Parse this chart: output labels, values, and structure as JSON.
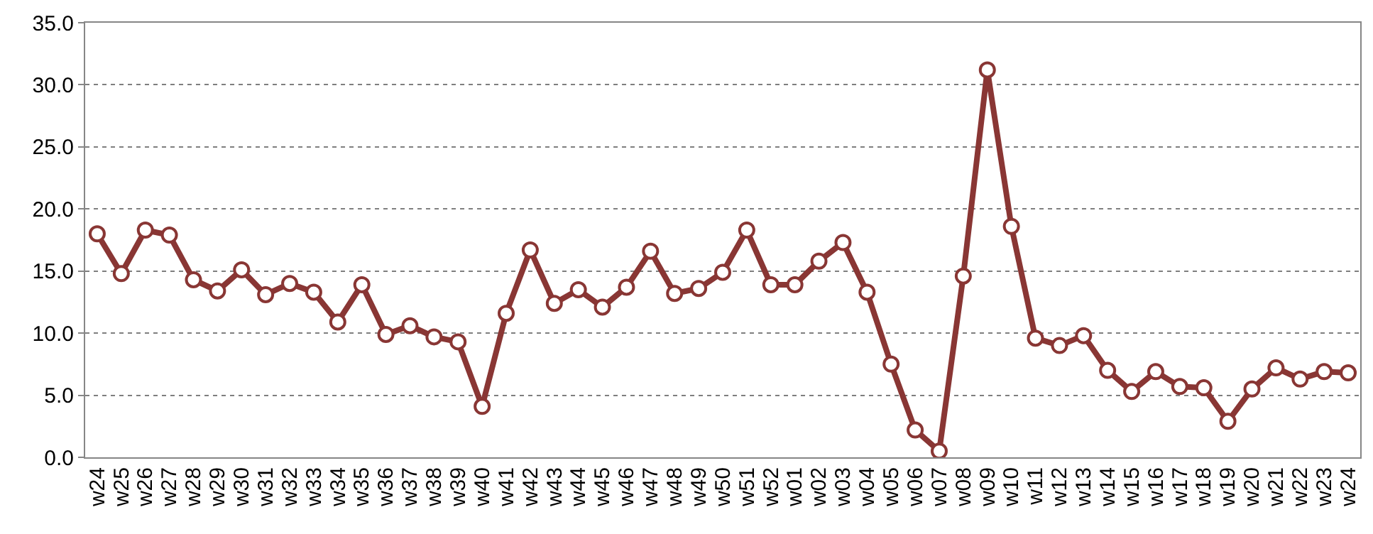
{
  "chart_data": {
    "type": "line",
    "categories": [
      "w24",
      "w25",
      "w26",
      "w27",
      "w28",
      "w29",
      "w30",
      "w31",
      "w32",
      "w33",
      "w34",
      "w35",
      "w36",
      "w37",
      "w38",
      "w39",
      "w40",
      "w41",
      "w42",
      "w43",
      "w44",
      "w45",
      "w46",
      "w47",
      "w48",
      "w49",
      "w50",
      "w51",
      "w52",
      "w01",
      "w02",
      "w03",
      "w04",
      "w05",
      "w06",
      "w07",
      "w08",
      "w09",
      "w10",
      "w11",
      "w12",
      "w13",
      "w14",
      "w15",
      "w16",
      "w17",
      "w18",
      "w19",
      "w20",
      "w21",
      "w22",
      "w23",
      "w24"
    ],
    "series": [
      {
        "color": "#893634",
        "values": [
          18.0,
          14.8,
          18.3,
          17.9,
          14.3,
          13.4,
          15.1,
          13.1,
          14.0,
          13.3,
          10.9,
          13.9,
          9.9,
          10.6,
          9.7,
          9.3,
          4.1,
          11.6,
          16.7,
          12.4,
          13.5,
          12.1,
          13.7,
          16.6,
          13.2,
          13.6,
          14.9,
          18.3,
          13.9,
          13.9,
          15.8,
          17.3,
          13.3,
          7.5,
          2.2,
          0.5,
          14.6,
          31.2,
          18.6,
          9.6,
          9.0,
          9.8,
          7.0,
          5.3,
          6.9,
          5.7,
          5.6,
          2.9,
          5.5,
          7.2,
          6.3,
          6.9,
          6.8
        ]
      }
    ],
    "ylim": [
      0,
      35
    ],
    "yticks": [
      {
        "value": 0,
        "label": "0.0"
      },
      {
        "value": 5,
        "label": "5.0"
      },
      {
        "value": 10,
        "label": "10.0"
      },
      {
        "value": 15,
        "label": "15.0"
      },
      {
        "value": 20,
        "label": "20.0"
      },
      {
        "value": 25,
        "label": "25.0"
      },
      {
        "value": 30,
        "label": "30.0"
      },
      {
        "value": 35,
        "label": "35.0"
      }
    ],
    "grid": "y",
    "legend": false,
    "marker": "circle",
    "line_style": "solid"
  }
}
